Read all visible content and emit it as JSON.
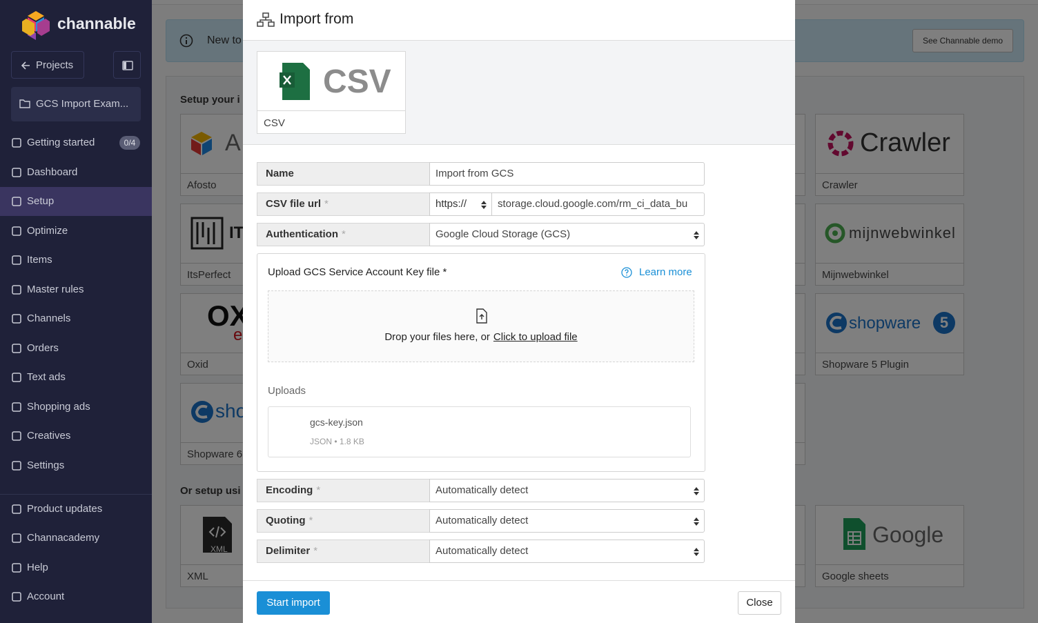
{
  "sidebar": {
    "brand": "channable",
    "back": "Projects",
    "project": "GCS Import Exam...",
    "nav": [
      {
        "label": "Getting started",
        "badge": "0/4"
      },
      {
        "label": "Dashboard"
      },
      {
        "label": "Setup"
      },
      {
        "label": "Optimize"
      },
      {
        "label": "Items"
      },
      {
        "label": "Master rules"
      },
      {
        "label": "Channels"
      },
      {
        "label": "Orders"
      },
      {
        "label": "Text ads"
      },
      {
        "label": "Shopping ads"
      },
      {
        "label": "Creatives"
      },
      {
        "label": "Settings"
      }
    ],
    "footer_nav": [
      {
        "label": "Product updates"
      },
      {
        "label": "Channacademy"
      },
      {
        "label": "Help"
      },
      {
        "label": "Account"
      }
    ]
  },
  "background": {
    "banner": {
      "text": "New to",
      "button": "See Channable demo"
    },
    "setup_heading": "Setup your i",
    "tiles": [
      {
        "logo": "A",
        "label": "Afosto"
      },
      {
        "logo": "IT",
        "label": "ItsPerfect"
      },
      {
        "logo": "OX",
        "logo_extra": "e",
        "label": "Oxid"
      },
      {
        "logo": "sho",
        "label": "Shopware 6"
      },
      {
        "logo": "Crawler",
        "label": "Crawler"
      },
      {
        "logo": "mijnwebwinkel",
        "label": "Mijnwebwinkel"
      },
      {
        "logo": "shopware",
        "logo_extra": "5",
        "label": "Shopware 5 Plugin"
      }
    ],
    "alt_heading": "Or setup usi",
    "alt_tiles": [
      {
        "logo": "XML",
        "label": "XML"
      },
      {
        "logo": "Google",
        "label": "Google sheets"
      }
    ]
  },
  "modal": {
    "title": "Import from",
    "source": {
      "logo": "CSV",
      "label": "CSV"
    },
    "fields": [
      {
        "label": "Name",
        "value": "Import from GCS"
      },
      {
        "label": "CSV file url",
        "marker": "*",
        "protocol": "https://",
        "value": "storage.cloud.google.com/rm_ci_data_bu"
      },
      {
        "label": "Authentication",
        "marker": "*",
        "value": "Google Cloud Storage (GCS)"
      }
    ],
    "upload": {
      "label": "Upload GCS Service Account Key file *",
      "help": "Learn more",
      "drop_text": "Drop your files here, or",
      "drop_link": "Click to upload file",
      "uploads_heading": "Uploads",
      "file": {
        "name": "gcs-key.json",
        "meta": "JSON • 1.8 KB"
      }
    },
    "options": [
      {
        "label": "Encoding",
        "marker": "*",
        "value": "Automatically detect"
      },
      {
        "label": "Quoting",
        "marker": "*",
        "value": "Automatically detect"
      },
      {
        "label": "Delimiter",
        "marker": "*",
        "value": "Automatically detect"
      }
    ],
    "primary_button": "Start import",
    "close_button": "Close"
  }
}
